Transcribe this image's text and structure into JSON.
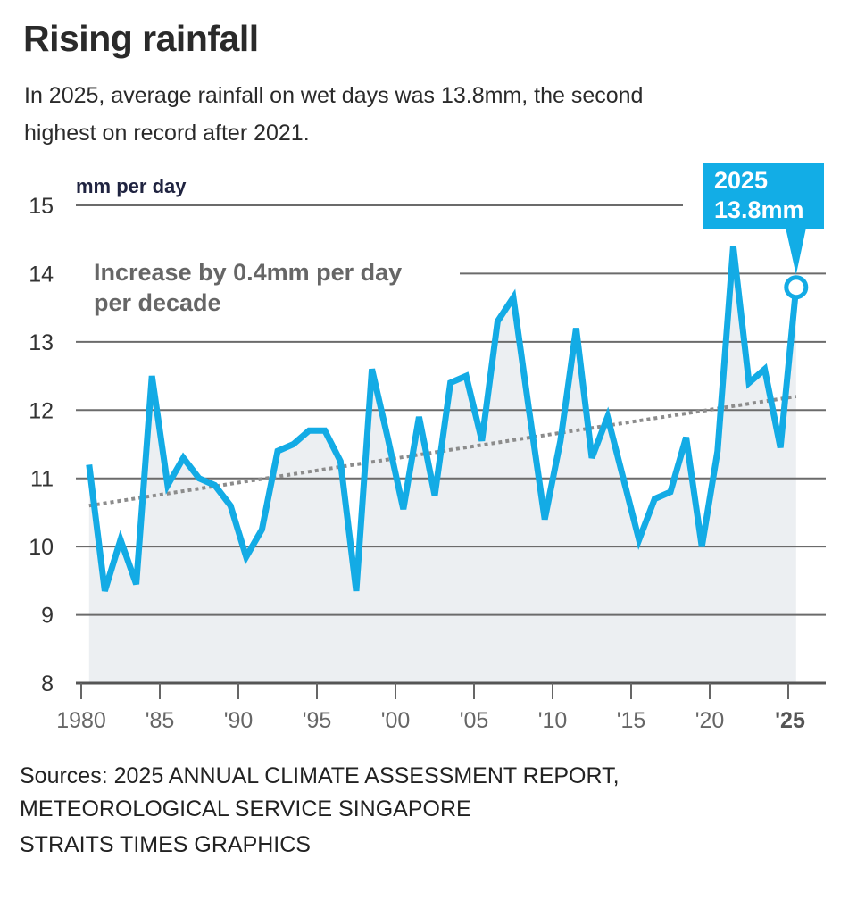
{
  "title": "Rising rainfall",
  "subtitle": "In 2025, average rainfall on wet days was 13.8mm, the second highest on record after 2021.",
  "chart_data": {
    "type": "area",
    "ylabel": "mm per day",
    "ylim": [
      8,
      15
    ],
    "yticks": [
      "8",
      "9",
      "10",
      "11",
      "12",
      "13",
      "14",
      "15"
    ],
    "xlim": [
      1980,
      2026
    ],
    "xticks": [
      {
        "year": 1980,
        "label": "1980"
      },
      {
        "year": 1985,
        "label": "'85"
      },
      {
        "year": 1990,
        "label": "'90"
      },
      {
        "year": 1995,
        "label": "'95"
      },
      {
        "year": 2000,
        "label": "'00"
      },
      {
        "year": 2005,
        "label": "'05"
      },
      {
        "year": 2010,
        "label": "'10"
      },
      {
        "year": 2015,
        "label": "'15"
      },
      {
        "year": 2020,
        "label": "'20"
      },
      {
        "year": 2025,
        "label": "'25"
      }
    ],
    "grid": true,
    "series": [
      {
        "x": [
          1980,
          1981,
          1982,
          1983,
          1984,
          1985,
          1986,
          1987,
          1988,
          1989,
          1990,
          1991,
          1992,
          1993,
          1994,
          1995,
          1996,
          1997,
          1998,
          1999,
          2000,
          2001,
          2002,
          2003,
          2004,
          2005,
          2006,
          2007,
          2008,
          2009,
          2010,
          2011,
          2012,
          2013,
          2014,
          2015,
          2016,
          2017,
          2018,
          2019,
          2020,
          2021,
          2022,
          2023,
          2024,
          2025
        ],
        "values": [
          11.2,
          9.35,
          10.1,
          9.45,
          12.5,
          10.9,
          11.3,
          11.0,
          10.9,
          10.6,
          9.85,
          10.25,
          11.4,
          11.5,
          11.7,
          11.7,
          11.25,
          9.35,
          12.6,
          11.6,
          10.55,
          11.9,
          10.75,
          12.4,
          12.5,
          11.55,
          13.3,
          13.65,
          12.0,
          10.4,
          11.55,
          13.2,
          11.3,
          11.9,
          11.0,
          10.1,
          10.7,
          10.8,
          11.6,
          10.0,
          11.4,
          14.4,
          12.4,
          12.6,
          11.45,
          13.8
        ],
        "color": "#13abe5",
        "fill": "#eceff2"
      }
    ],
    "trend": {
      "x": [
        1980,
        2025
      ],
      "values": [
        10.6,
        12.2
      ],
      "color": "#8c8c8c",
      "style": "dotted"
    },
    "annotation": [
      "Increase by 0.4mm per day",
      "per decade"
    ],
    "callout": {
      "year": "2025",
      "value": "13.8mm",
      "color": "#12ade6"
    }
  },
  "sources": [
    "Sources: 2025 ANNUAL CLIMATE ASSESSMENT REPORT,",
    "METEOROLOGICAL SERVICE SINGAPORE",
    "STRAITS TIMES GRAPHICS"
  ]
}
